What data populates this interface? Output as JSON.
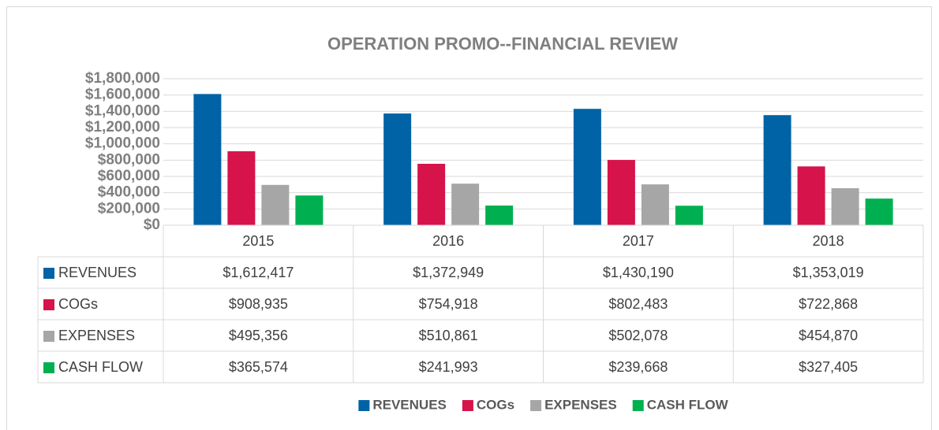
{
  "chart_data": {
    "type": "bar",
    "title": "OPERATION PROMO--FINANCIAL REVIEW",
    "categories": [
      "2015",
      "2016",
      "2017",
      "2018"
    ],
    "series": [
      {
        "name": "REVENUES",
        "color": "#0063a6",
        "values": [
          1612417,
          1372949,
          1430190,
          1353019
        ],
        "value_labels": [
          "$1,612,417",
          "$1,372,949",
          "$1,430,190",
          "$1,353,019"
        ]
      },
      {
        "name": "COGs",
        "color": "#d6134a",
        "values": [
          908935,
          754918,
          802483,
          722868
        ],
        "value_labels": [
          "$908,935",
          "$754,918",
          "$802,483",
          "$722,868"
        ]
      },
      {
        "name": "EXPENSES",
        "color": "#a6a6a6",
        "values": [
          495356,
          510861,
          502078,
          454870
        ],
        "value_labels": [
          "$495,356",
          "$510,861",
          "$502,078",
          "$454,870"
        ]
      },
      {
        "name": "CASH FLOW",
        "color": "#00b050",
        "values": [
          365574,
          241993,
          239668,
          327405
        ],
        "value_labels": [
          "$365,574",
          "$241,993",
          "$239,668",
          "$327,405"
        ]
      }
    ],
    "ylim": [
      0,
      1800000
    ],
    "yticks": [
      {
        "value": 0,
        "label": "$0"
      },
      {
        "value": 200000,
        "label": "$200,000"
      },
      {
        "value": 400000,
        "label": "$400,000"
      },
      {
        "value": 600000,
        "label": "$600,000"
      },
      {
        "value": 800000,
        "label": "$800,000"
      },
      {
        "value": 1000000,
        "label": "$1,000,000"
      },
      {
        "value": 1200000,
        "label": "$1,200,000"
      },
      {
        "value": 1400000,
        "label": "$1,400,000"
      },
      {
        "value": 1600000,
        "label": "$1,600,000"
      },
      {
        "value": 1800000,
        "label": "$1,800,000"
      }
    ],
    "grid": true,
    "legend": "bottom"
  }
}
